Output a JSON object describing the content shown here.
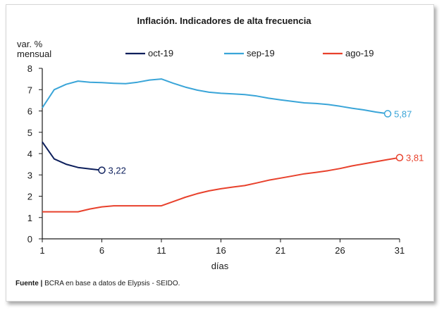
{
  "chart_data": {
    "type": "line",
    "title": "Inflación. Indicadores de alta frecuencia",
    "ylabel_line1": "var. %",
    "ylabel_line2": "mensual",
    "xlabel": "días",
    "xlim": [
      1,
      31
    ],
    "ylim": [
      0,
      8
    ],
    "x_ticks": [
      1,
      6,
      11,
      16,
      21,
      26,
      31
    ],
    "y_ticks": [
      0,
      1,
      2,
      3,
      4,
      5,
      6,
      7,
      8
    ],
    "grid": false,
    "legend_position": "top",
    "series": [
      {
        "name": "oct-19",
        "color": "#0d1f5c",
        "x": [
          1,
          2,
          3,
          4,
          5,
          6
        ],
        "values": [
          4.55,
          3.75,
          3.5,
          3.35,
          3.28,
          3.22
        ],
        "end_label": "3,22"
      },
      {
        "name": "sep-19",
        "color": "#3aa5d8",
        "x": [
          1,
          2,
          3,
          4,
          5,
          6,
          7,
          8,
          9,
          10,
          11,
          12,
          13,
          14,
          15,
          16,
          17,
          18,
          19,
          20,
          21,
          22,
          23,
          24,
          25,
          26,
          27,
          28,
          29,
          30
        ],
        "values": [
          6.15,
          7.0,
          7.25,
          7.4,
          7.35,
          7.33,
          7.3,
          7.28,
          7.35,
          7.45,
          7.5,
          7.3,
          7.12,
          6.98,
          6.88,
          6.83,
          6.8,
          6.77,
          6.7,
          6.6,
          6.52,
          6.45,
          6.38,
          6.35,
          6.3,
          6.22,
          6.13,
          6.05,
          5.95,
          5.87
        ],
        "end_label": "5,87"
      },
      {
        "name": "ago-19",
        "color": "#e8412c",
        "x": [
          1,
          2,
          3,
          4,
          5,
          6,
          7,
          8,
          9,
          10,
          11,
          12,
          13,
          14,
          15,
          16,
          17,
          18,
          19,
          20,
          21,
          22,
          23,
          24,
          25,
          26,
          27,
          28,
          29,
          30,
          31
        ],
        "values": [
          1.27,
          1.27,
          1.27,
          1.27,
          1.4,
          1.5,
          1.55,
          1.55,
          1.55,
          1.55,
          1.55,
          1.75,
          1.95,
          2.12,
          2.25,
          2.35,
          2.43,
          2.5,
          2.62,
          2.75,
          2.85,
          2.95,
          3.05,
          3.12,
          3.2,
          3.3,
          3.42,
          3.52,
          3.62,
          3.72,
          3.81
        ],
        "end_label": "3,81"
      }
    ]
  },
  "source": {
    "label": "Fuente |",
    "text": " BCRA en base a datos de Elypsis - SEIDO."
  }
}
